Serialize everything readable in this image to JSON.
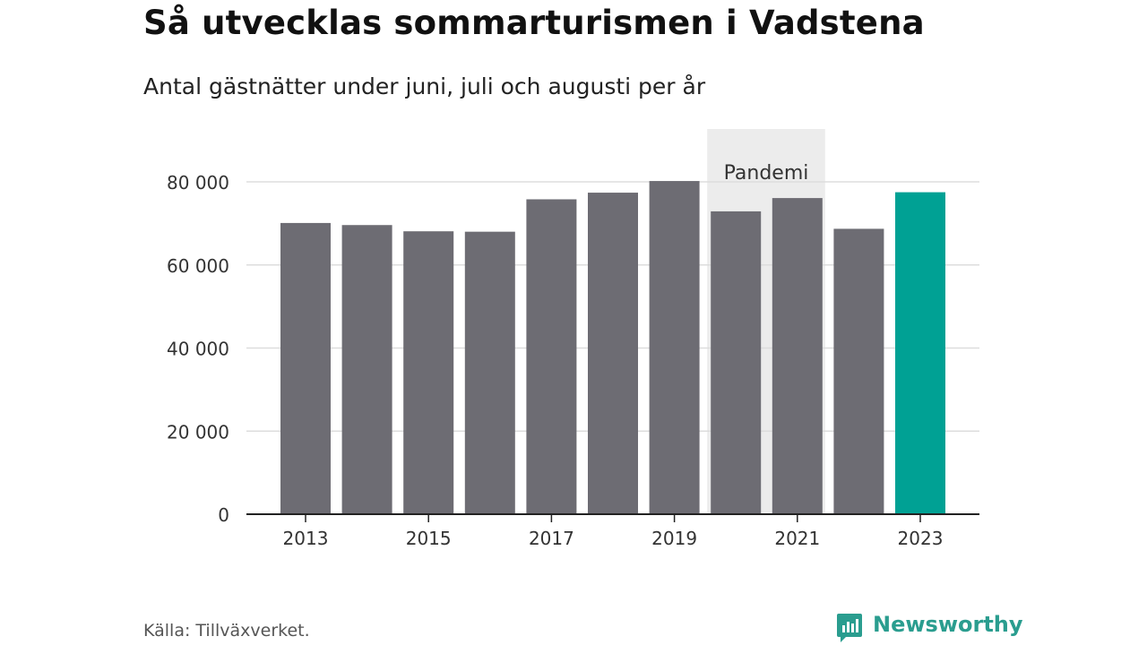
{
  "title": "Så utvecklas sommarturismen i Vadstena",
  "subtitle": "Antal gästnätter under juni, juli och augusti per år",
  "source": "Källa: Tillväxverket.",
  "brand": "Newsworthy",
  "colors": {
    "bar": "#6d6c73",
    "highlight": "#00a194",
    "annotation_band": "#ececec",
    "gridline": "#dddddd",
    "axis": "#222222",
    "brand": "#2a9d8f"
  },
  "chart_data": {
    "type": "bar",
    "title": "Så utvecklas sommarturismen i Vadstena",
    "subtitle": "Antal gästnätter under juni, juli och augusti per år",
    "xlabel": "",
    "ylabel": "",
    "categories": [
      "2013",
      "2014",
      "2015",
      "2016",
      "2017",
      "2018",
      "2019",
      "2020",
      "2021",
      "2022",
      "2023"
    ],
    "values": [
      70100,
      69600,
      68100,
      68000,
      75800,
      77400,
      80200,
      72900,
      76100,
      68700,
      77500
    ],
    "highlight_category": "2023",
    "x_tick_labels": [
      "2013",
      "2015",
      "2017",
      "2019",
      "2021",
      "2023"
    ],
    "y_ticks": [
      0,
      20000,
      40000,
      60000,
      80000
    ],
    "y_tick_labels": [
      "0",
      "20 000",
      "40 000",
      "60 000",
      "80 000"
    ],
    "ylim": [
      0,
      80000
    ],
    "grid": true,
    "legend": "none",
    "annotations": [
      {
        "label": "Pandemi",
        "span": [
          "2020",
          "2021"
        ]
      }
    ]
  }
}
